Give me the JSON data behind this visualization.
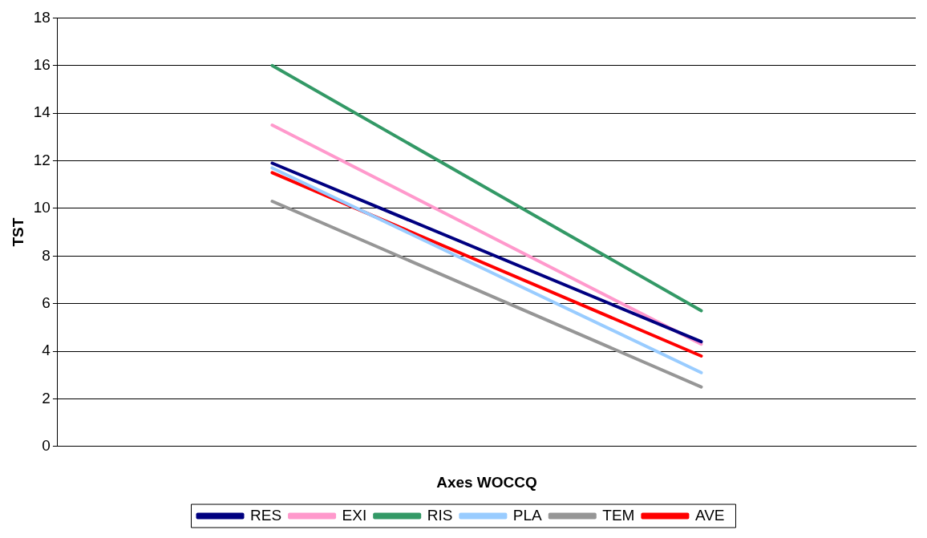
{
  "chart_data": {
    "type": "line",
    "xlabel": "Axes WOCCQ",
    "ylabel": "TST",
    "categories": [
      null,
      null
    ],
    "ylim": [
      0,
      18
    ],
    "yticks": [
      0,
      2,
      4,
      6,
      8,
      10,
      12,
      14,
      16,
      18
    ],
    "grid": "y",
    "legend": "bottom",
    "marker": "none",
    "line_style": "solid",
    "series": [
      {
        "name": "RES",
        "color": "#000080",
        "values": [
          11.9,
          4.4
        ]
      },
      {
        "name": "EXI",
        "color": "#ff99cc",
        "values": [
          13.5,
          4.3
        ]
      },
      {
        "name": "RIS",
        "color": "#339966",
        "values": [
          16,
          5.7
        ]
      },
      {
        "name": "PLA",
        "color": "#99ccff",
        "values": [
          11.7,
          3.1
        ]
      },
      {
        "name": "TEM",
        "color": "#969696",
        "values": [
          10.3,
          2.5
        ]
      },
      {
        "name": "AVE",
        "color": "#ff0000",
        "values": [
          11.5,
          3.8
        ]
      }
    ]
  }
}
